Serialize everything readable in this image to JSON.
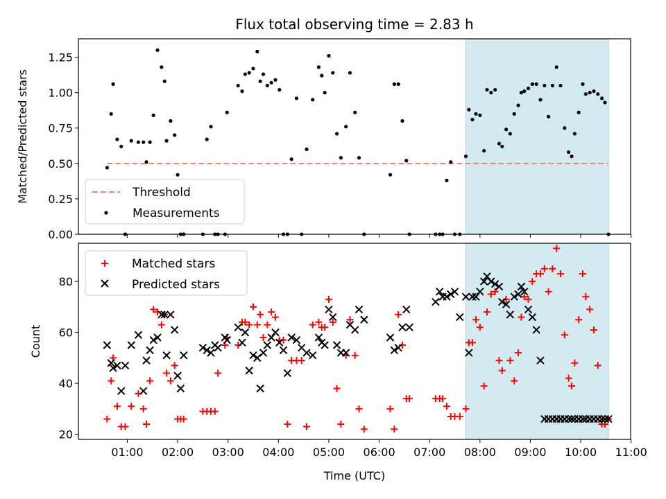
{
  "figure": {
    "title": "Flux total observing time = 2.83 h",
    "xlabel": "Time (UTC)",
    "x_ticks": [
      "01:00",
      "02:00",
      "03:00",
      "04:00",
      "05:00",
      "06:00",
      "07:00",
      "08:00",
      "09:00",
      "10:00",
      "11:00"
    ],
    "x_tick_hours": [
      1,
      2,
      3,
      4,
      5,
      6,
      7,
      8,
      9,
      10,
      11
    ],
    "x_range_hours": [
      0.03,
      10.99
    ],
    "highlight_hours": [
      7.72,
      10.55
    ],
    "highlight_color": "#d3eaf0"
  },
  "chart_data": [
    {
      "type": "scatter",
      "panel": "ratio",
      "ylabel": "Matched/Predicted stars",
      "ylim": [
        0,
        1.38
      ],
      "y_ticks": [
        "0.00",
        "0.25",
        "0.50",
        "0.75",
        "1.00",
        "1.25"
      ],
      "y_tick_values": [
        0,
        0.25,
        0.5,
        0.75,
        1.0,
        1.25
      ],
      "legend": {
        "placement": "lower-left",
        "entries": [
          "Threshold",
          "Measurements"
        ]
      },
      "threshold": {
        "name": "Threshold",
        "value": 0.5,
        "x_from": 0.6,
        "x_to": 10.55,
        "color": "#f08080",
        "style": "dashed"
      },
      "series": [
        {
          "name": "Measurements",
          "color": "#000000",
          "x": [
            0.6,
            0.68,
            0.72,
            0.8,
            0.88,
            0.96,
            1.08,
            1.22,
            1.32,
            1.38,
            1.45,
            1.52,
            1.6,
            1.68,
            1.74,
            1.78,
            1.86,
            1.94,
            2.0,
            2.06,
            2.12,
            2.5,
            2.58,
            2.66,
            2.74,
            2.8,
            2.94,
            2.98,
            3.2,
            3.28,
            3.34,
            3.42,
            3.5,
            3.58,
            3.64,
            3.7,
            3.78,
            3.86,
            3.94,
            4.02,
            4.1,
            4.18,
            4.26,
            4.36,
            4.46,
            4.56,
            4.68,
            4.8,
            4.86,
            4.92,
            5.0,
            5.08,
            5.16,
            5.24,
            5.34,
            5.42,
            5.52,
            5.6,
            5.7,
            6.22,
            6.3,
            6.38,
            6.46,
            6.54,
            6.6,
            7.12,
            7.2,
            7.26,
            7.34,
            7.42,
            7.5,
            7.6,
            7.72,
            7.78,
            7.85,
            7.92,
            8.0,
            8.08,
            8.14,
            8.22,
            8.3,
            8.38,
            8.44,
            8.52,
            8.6,
            8.68,
            8.76,
            8.82,
            8.88,
            8.96,
            9.04,
            9.12,
            9.2,
            9.28,
            9.36,
            9.44,
            9.52,
            9.6,
            9.68,
            9.76,
            9.82,
            9.88,
            9.96,
            10.04,
            10.1,
            10.18,
            10.26,
            10.34,
            10.42,
            10.48,
            10.55
          ],
          "y": [
            0.47,
            0.85,
            1.06,
            0.67,
            0.62,
            0.0,
            0.66,
            0.65,
            0.65,
            0.51,
            0.65,
            0.84,
            1.3,
            1.18,
            1.08,
            0.66,
            0.8,
            0.7,
            0.42,
            0.0,
            0.0,
            0.0,
            0.67,
            0.76,
            0.0,
            0.0,
            0.0,
            0.86,
            1.05,
            1.01,
            1.13,
            1.14,
            1.17,
            1.29,
            1.08,
            1.13,
            1.05,
            1.07,
            1.09,
            1.02,
            0.0,
            0.0,
            0.53,
            0.96,
            0.0,
            0.6,
            0.95,
            1.18,
            1.12,
            1.0,
            1.26,
            1.14,
            0.71,
            0.54,
            0.76,
            1.14,
            0.86,
            0.54,
            0.0,
            0.42,
            1.06,
            1.06,
            0.8,
            0.52,
            0.0,
            0.0,
            0.0,
            0.0,
            0.38,
            0.51,
            0.0,
            0.0,
            0.55,
            0.88,
            0.81,
            0.85,
            0.84,
            0.59,
            1.02,
            1.0,
            1.02,
            0.64,
            0.62,
            0.74,
            0.71,
            0.85,
            0.91,
            1.0,
            1.01,
            1.03,
            1.06,
            1.06,
            0.95,
            1.05,
            0.83,
            1.05,
            1.18,
            1.05,
            0.75,
            0.58,
            0.55,
            0.71,
            0.86,
            1.06,
            0.99,
            1.0,
            1.01,
            0.99,
            0.96,
            0.93,
            0.0
          ]
        }
      ]
    },
    {
      "type": "scatter",
      "panel": "count",
      "ylabel": "Count",
      "ylim": [
        18,
        95
      ],
      "y_ticks": [
        "20",
        "40",
        "60",
        "80"
      ],
      "y_tick_values": [
        20,
        40,
        60,
        80
      ],
      "legend": {
        "placement": "upper-left",
        "entries": [
          "Matched stars",
          "Predicted stars"
        ]
      },
      "series": [
        {
          "name": "Matched stars",
          "marker": "plus",
          "color": "#ff0000",
          "x": [
            0.6,
            0.68,
            0.72,
            0.8,
            0.88,
            0.96,
            1.08,
            1.22,
            1.32,
            1.38,
            1.45,
            1.52,
            1.6,
            1.68,
            1.74,
            1.78,
            1.86,
            1.94,
            2.0,
            2.06,
            2.12,
            2.5,
            2.58,
            2.66,
            2.74,
            2.8,
            2.94,
            2.98,
            3.2,
            3.28,
            3.34,
            3.42,
            3.5,
            3.58,
            3.64,
            3.7,
            3.78,
            3.86,
            3.94,
            4.02,
            4.1,
            4.18,
            4.26,
            4.36,
            4.46,
            4.56,
            4.68,
            4.8,
            4.86,
            4.92,
            5.0,
            5.08,
            5.16,
            5.24,
            5.34,
            5.42,
            5.52,
            5.6,
            5.7,
            6.22,
            6.3,
            6.38,
            6.46,
            6.54,
            6.6,
            7.12,
            7.2,
            7.26,
            7.34,
            7.42,
            7.5,
            7.6,
            7.72,
            7.78,
            7.85,
            7.92,
            8.0,
            8.08,
            8.14,
            8.22,
            8.3,
            8.38,
            8.44,
            8.52,
            8.6,
            8.68,
            8.76,
            8.82,
            8.88,
            8.96,
            9.04,
            9.12,
            9.2,
            9.28,
            9.36,
            9.44,
            9.52,
            9.6,
            9.68,
            9.76,
            9.82,
            9.88,
            9.96,
            10.04,
            10.1,
            10.18,
            10.26,
            10.34,
            10.42,
            10.48,
            10.55
          ],
          "y": [
            26,
            41,
            50,
            31,
            23,
            23,
            31,
            36,
            30,
            24,
            41,
            69,
            68,
            63,
            67,
            44,
            41,
            47,
            26,
            26,
            26,
            29,
            29,
            29,
            29,
            44,
            55,
            58,
            55,
            64,
            64,
            63,
            70,
            63,
            67,
            58,
            63,
            68,
            66,
            57,
            57,
            24,
            49,
            49,
            49,
            23,
            63,
            64,
            62,
            62,
            73,
            64,
            38,
            24,
            51,
            65,
            51,
            30,
            22,
            30,
            22,
            67,
            55,
            34,
            34,
            34,
            34,
            34,
            31,
            27,
            27,
            27,
            30,
            56,
            56,
            65,
            62,
            39,
            68,
            75,
            76,
            49,
            45,
            73,
            49,
            41,
            52,
            66,
            74,
            73,
            80,
            83,
            83,
            85,
            76,
            85,
            93,
            83,
            59,
            42,
            39,
            48,
            65,
            83,
            74,
            69,
            61,
            47,
            24,
            24,
            26
          ],
          "x_note": ""
        },
        {
          "name": "Predicted stars",
          "marker": "x",
          "color": "#000000",
          "x": [
            0.6,
            0.68,
            0.72,
            0.8,
            0.88,
            0.96,
            1.08,
            1.22,
            1.32,
            1.38,
            1.45,
            1.52,
            1.6,
            1.68,
            1.74,
            1.78,
            1.86,
            1.94,
            2.0,
            2.06,
            2.12,
            2.5,
            2.58,
            2.66,
            2.74,
            2.8,
            2.94,
            2.98,
            3.2,
            3.28,
            3.34,
            3.42,
            3.5,
            3.58,
            3.64,
            3.7,
            3.78,
            3.86,
            3.94,
            4.02,
            4.1,
            4.18,
            4.26,
            4.36,
            4.46,
            4.56,
            4.68,
            4.8,
            4.86,
            4.92,
            5.0,
            5.08,
            5.16,
            5.24,
            5.34,
            5.42,
            5.52,
            5.6,
            5.7,
            6.22,
            6.3,
            6.38,
            6.46,
            6.54,
            6.6,
            7.12,
            7.2,
            7.26,
            7.34,
            7.42,
            7.5,
            7.6,
            7.72,
            7.78,
            7.85,
            7.92,
            8.0,
            8.08,
            8.14,
            8.22,
            8.3,
            8.38,
            8.44,
            8.52,
            8.6,
            8.68,
            8.76,
            8.82,
            8.88,
            8.96,
            9.04,
            9.12,
            9.2,
            9.28,
            9.36,
            9.44,
            9.52,
            9.6,
            9.68,
            9.76,
            9.82,
            9.88,
            9.96,
            10.04,
            10.1,
            10.18,
            10.26,
            10.34,
            10.42,
            10.48,
            10.55
          ],
          "y": [
            55,
            48,
            46,
            47,
            37,
            47,
            55,
            59,
            37,
            49,
            53,
            57,
            58,
            67,
            67,
            51,
            67,
            61,
            43,
            38,
            51,
            54,
            53,
            52,
            55,
            54,
            58,
            57,
            62,
            56,
            60,
            45,
            51,
            50,
            38,
            52,
            55,
            58,
            60,
            56,
            53,
            44,
            58,
            57,
            54,
            52,
            51,
            58,
            56,
            55,
            69,
            66,
            55,
            52,
            52,
            63,
            61,
            69,
            65,
            58,
            53,
            54,
            62,
            69,
            62,
            72,
            76,
            74,
            74,
            75,
            76,
            66,
            74,
            52,
            74,
            74,
            76,
            80,
            82,
            80,
            79,
            78,
            72,
            71,
            67,
            74,
            75,
            78,
            76,
            69,
            66,
            61,
            49,
            26,
            26,
            26,
            26,
            26,
            26,
            26,
            26,
            26,
            26,
            26,
            26,
            26,
            26,
            26,
            26,
            26,
            26
          ]
        }
      ]
    }
  ]
}
